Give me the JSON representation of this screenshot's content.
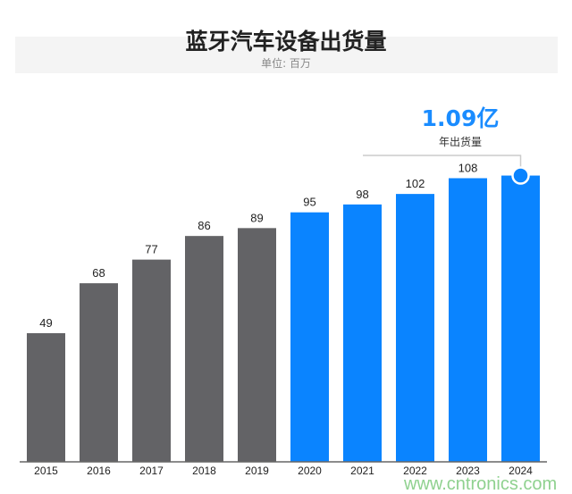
{
  "chart_data": {
    "type": "bar",
    "title": "蓝牙汽车设备出货量",
    "subtitle": "单位: 百万",
    "categories": [
      "2015",
      "2016",
      "2017",
      "2018",
      "2019",
      "2020",
      "2021",
      "2022",
      "2023",
      "2024"
    ],
    "values": [
      49,
      68,
      77,
      86,
      89,
      95,
      98,
      102,
      108,
      109
    ],
    "data_labels": [
      "49",
      "68",
      "77",
      "86",
      "89",
      "95",
      "98",
      "102",
      "108",
      ""
    ],
    "colors": [
      "#636366",
      "#636366",
      "#636366",
      "#636366",
      "#636366",
      "#0a84ff",
      "#0a84ff",
      "#0a84ff",
      "#0a84ff",
      "#0a84ff"
    ],
    "highlight": {
      "value": "1.09亿",
      "label": "年出货量",
      "color": "#1a8cff"
    },
    "ylim": [
      0,
      120
    ],
    "grid": false
  },
  "watermark": "www.cntronics.com"
}
